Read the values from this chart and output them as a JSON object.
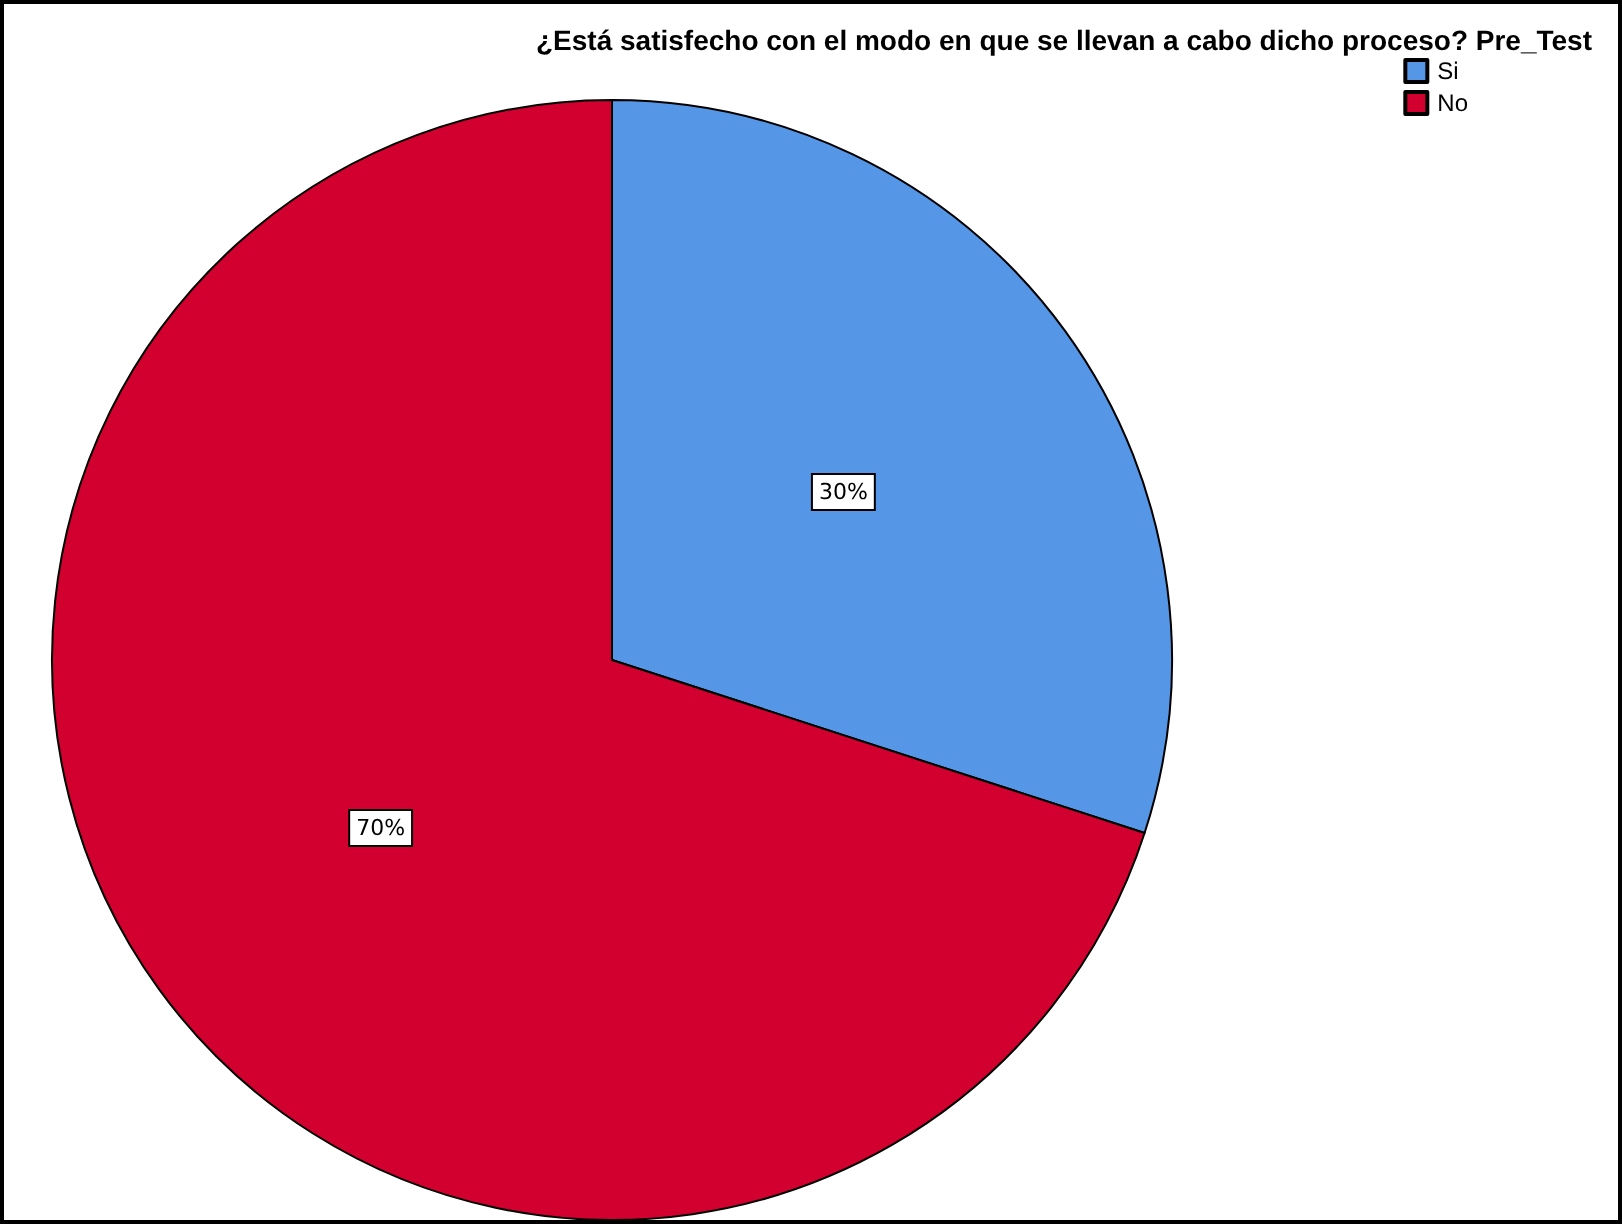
{
  "chart_data": {
    "type": "pie",
    "title": "¿Está satisfecho con el modo en que se llevan a cabo dicho proceso? Pre_Test",
    "categories": [
      "Si",
      "No"
    ],
    "values": [
      30,
      70
    ],
    "colors": [
      "#5596e6",
      "#d2002e"
    ],
    "value_labels": [
      "30%",
      "70%"
    ],
    "legend": "top right"
  }
}
